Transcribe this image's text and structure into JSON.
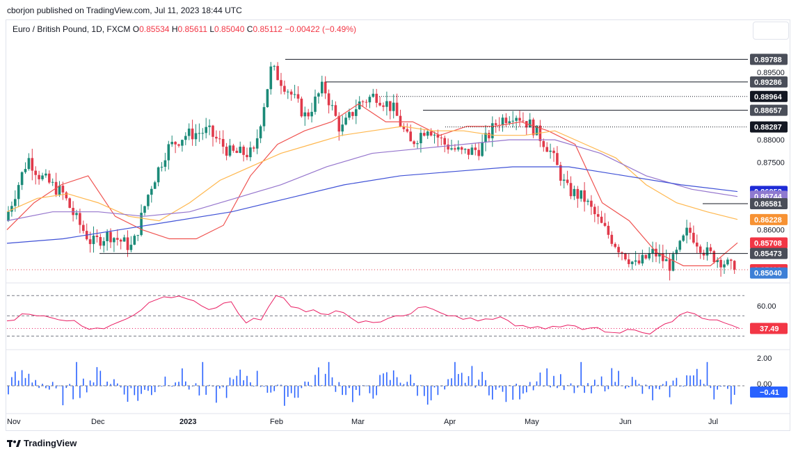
{
  "header": {
    "publisher_line": "cborjon published on TradingView.com, Jul 11, 2023 18:44 UTC"
  },
  "legend": {
    "symbol": "Euro / British Pound, 1D, FXCM",
    "open_label": "O",
    "open": "0.85534",
    "high_label": "H",
    "high": "0.85611",
    "low_label": "L",
    "low": "0.85040",
    "close_label": "C",
    "close": "0.85112",
    "change": "−0.00422 (−0.49%)"
  },
  "brand": {
    "logo_text": "TradingView"
  },
  "colors": {
    "up": "#26a69a",
    "up_body": "#1b8a78",
    "down": "#e0394a",
    "ema_fast": "#ef5350",
    "ema_mid": "#ffb74d",
    "sma_mid": "#9575cd",
    "sma_slow": "#3f51d6",
    "rsi": "#e91e63",
    "macd_hist": "#2962ff",
    "grid_dash": "#787b86"
  },
  "chart_data": [
    {
      "type": "candlestick",
      "title": "Euro / British Pound, 1D, FXCM",
      "x_tick_labels": [
        "Nov",
        "Dec",
        "2023",
        "Feb",
        "Mar",
        "Apr",
        "May",
        "Jun",
        "Jul"
      ],
      "y_tick_labels": [
        "0.89500",
        "0.88000",
        "0.87500",
        "0.86000"
      ],
      "ylim": [
        0.8485,
        0.9015
      ],
      "series": [
        {
          "name": "EMA fast",
          "values": [
            0.86,
            0.866,
            0.87,
            0.872,
            0.863,
            0.86,
            0.858,
            0.858,
            0.861,
            0.872,
            0.879,
            0.882,
            0.884,
            0.888,
            0.884,
            0.884,
            0.881,
            0.883,
            0.883,
            0.884,
            0.882,
            0.879,
            0.866,
            0.862,
            0.855,
            0.852,
            0.852,
            0.8571
          ]
        },
        {
          "name": "EMA mid",
          "values": [
            0.864,
            0.867,
            0.868,
            0.866,
            0.863,
            0.862,
            0.866,
            0.871,
            0.874,
            0.877,
            0.879,
            0.881,
            0.882,
            0.883,
            0.882,
            0.882,
            0.881,
            0.881,
            0.882,
            0.879,
            0.876,
            0.87,
            0.866,
            0.864,
            0.8623
          ]
        },
        {
          "name": "SMA mid",
          "values": [
            0.862,
            0.864,
            0.864,
            0.863,
            0.864,
            0.867,
            0.87,
            0.874,
            0.877,
            0.878,
            0.879,
            0.88,
            0.88,
            0.877,
            0.872,
            0.869,
            0.8674
          ]
        },
        {
          "name": "SMA slow",
          "values": [
            0.857,
            0.858,
            0.86,
            0.862,
            0.864,
            0.867,
            0.87,
            0.872,
            0.873,
            0.874,
            0.874,
            0.872,
            0.87,
            0.8685
          ]
        }
      ],
      "price_labels": [
        {
          "value": 0.89788,
          "text": "0.89788",
          "kind": "level"
        },
        {
          "value": 0.89286,
          "text": "0.89286",
          "kind": "level"
        },
        {
          "value": 0.88964,
          "text": "0.88964",
          "kind": "level-black"
        },
        {
          "value": 0.88657,
          "text": "0.88657",
          "kind": "level"
        },
        {
          "value": 0.88287,
          "text": "0.88287",
          "kind": "level-black"
        },
        {
          "value": 0.86852,
          "text": "0.86852",
          "kind": "sma-slow"
        },
        {
          "value": 0.86744,
          "text": "0.86744",
          "kind": "sma-mid"
        },
        {
          "value": 0.86581,
          "text": "0.86581",
          "kind": "level"
        },
        {
          "value": 0.86228,
          "text": "0.86228",
          "kind": "ema-mid"
        },
        {
          "value": 0.85708,
          "text": "0.85708",
          "kind": "ema-fast"
        },
        {
          "value": 0.85473,
          "text": "0.85473",
          "kind": "level"
        },
        {
          "value": 0.85112,
          "text": "0.85112",
          "kind": "close"
        },
        {
          "value": 0.8504,
          "text": "0.85040",
          "kind": "low"
        }
      ],
      "close": 0.85112
    },
    {
      "type": "line",
      "title": "RSI",
      "y_tick_labels": [
        "60.00"
      ],
      "ylim": [
        20,
        75
      ],
      "series": [
        {
          "name": "RSI",
          "values": [
            45,
            52,
            50,
            48,
            45,
            40,
            38,
            41,
            47,
            56,
            66,
            68,
            67,
            60,
            58,
            64,
            43,
            46,
            70,
            59,
            54,
            52,
            55,
            48,
            45,
            44,
            50,
            52,
            59,
            53,
            50,
            48,
            47,
            49,
            40,
            38,
            37,
            39,
            40,
            38,
            34,
            33,
            36,
            32,
            42,
            51,
            52,
            46,
            43,
            37.49
          ]
        }
      ],
      "value_label": "37.49"
    },
    {
      "type": "bar",
      "title": "MACD histogram",
      "y_tick_labels": [
        "2.00",
        "0.00"
      ],
      "ylim": [
        -3,
        3
      ],
      "value_label": "−0.41"
    }
  ]
}
